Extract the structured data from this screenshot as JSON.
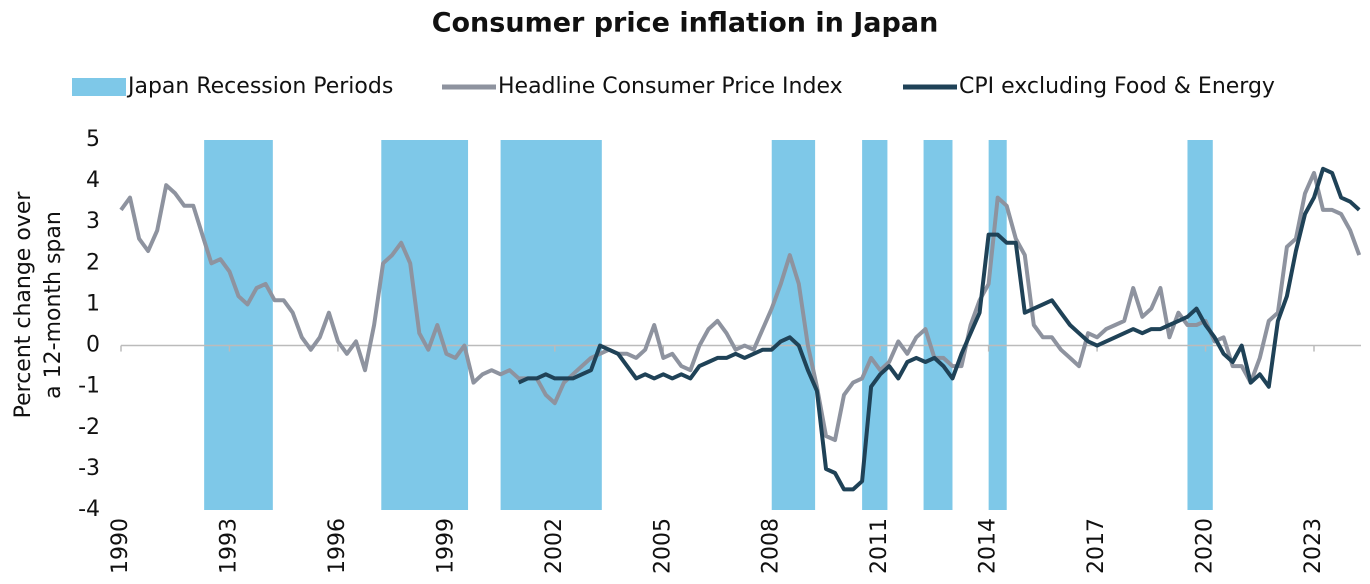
{
  "chart_data": {
    "type": "line",
    "title": "Consumer price inflation in Japan",
    "y_label": [
      "Percent change over",
      "a 12-month span"
    ],
    "x": [
      1990,
      1990.25,
      1990.5,
      1990.75,
      1991,
      1991.25,
      1991.5,
      1991.75,
      1992,
      1992.25,
      1992.5,
      1992.75,
      1993,
      1993.25,
      1993.5,
      1993.75,
      1994,
      1994.25,
      1994.5,
      1994.75,
      1995,
      1995.25,
      1995.5,
      1995.75,
      1996,
      1996.25,
      1996.5,
      1996.75,
      1997,
      1997.25,
      1997.5,
      1997.75,
      1998,
      1998.25,
      1998.5,
      1998.75,
      1999,
      1999.25,
      1999.5,
      1999.75,
      2000,
      2000.25,
      2000.5,
      2000.75,
      2001,
      2001.25,
      2001.5,
      2001.75,
      2002,
      2002.25,
      2002.5,
      2002.75,
      2003,
      2003.25,
      2003.5,
      2003.75,
      2004,
      2004.25,
      2004.5,
      2004.75,
      2005,
      2005.25,
      2005.5,
      2005.75,
      2006,
      2006.25,
      2006.5,
      2006.75,
      2007,
      2007.25,
      2007.5,
      2007.75,
      2008,
      2008.25,
      2008.5,
      2008.75,
      2009,
      2009.25,
      2009.5,
      2009.75,
      2010,
      2010.25,
      2010.5,
      2010.75,
      2011,
      2011.25,
      2011.5,
      2011.75,
      2012,
      2012.25,
      2012.5,
      2012.75,
      2013,
      2013.25,
      2013.5,
      2013.75,
      2014,
      2014.25,
      2014.5,
      2014.75,
      2015,
      2015.25,
      2015.5,
      2015.75,
      2016,
      2016.25,
      2016.5,
      2016.75,
      2017,
      2017.25,
      2017.5,
      2017.75,
      2018,
      2018.25,
      2018.5,
      2018.75,
      2019,
      2019.25,
      2019.5,
      2019.75,
      2020,
      2020.25,
      2020.5,
      2020.75,
      2021,
      2021.25,
      2021.5,
      2021.75,
      2022,
      2022.25,
      2022.5,
      2022.75,
      2023,
      2023.25,
      2023.5,
      2023.75,
      2024,
      2024.25
    ],
    "series": [
      {
        "name": "Japan Recession Periods",
        "color": "#7ec8e8",
        "periods": [
          [
            1992.3,
            1994.2
          ],
          [
            1997.2,
            1999.6
          ],
          [
            2000.5,
            2003.3
          ],
          [
            2008.0,
            2009.2
          ],
          [
            2010.5,
            2011.2
          ],
          [
            2012.2,
            2013.0
          ],
          [
            2014.0,
            2014.5
          ],
          [
            2019.5,
            2020.2
          ]
        ]
      },
      {
        "name": "Headline Consumer Price Index",
        "color": "#8e939f",
        "values": [
          3.3,
          3.6,
          2.6,
          2.3,
          2.8,
          3.9,
          3.7,
          3.4,
          3.4,
          2.7,
          2.0,
          2.1,
          1.8,
          1.2,
          1.0,
          1.4,
          1.5,
          1.1,
          1.1,
          0.8,
          0.2,
          -0.1,
          0.2,
          0.8,
          0.1,
          -0.2,
          0.1,
          -0.6,
          0.5,
          2.0,
          2.2,
          2.5,
          2.0,
          0.3,
          -0.1,
          0.5,
          -0.2,
          -0.3,
          0.0,
          -0.9,
          -0.7,
          -0.6,
          -0.7,
          -0.6,
          -0.8,
          -0.8,
          -0.8,
          -1.2,
          -1.4,
          -0.9,
          -0.7,
          -0.5,
          -0.3,
          -0.2,
          -0.1,
          -0.2,
          -0.2,
          -0.3,
          -0.1,
          0.5,
          -0.3,
          -0.2,
          -0.5,
          -0.6,
          0.0,
          0.4,
          0.6,
          0.3,
          -0.1,
          0.0,
          -0.1,
          0.4,
          0.9,
          1.5,
          2.2,
          1.5,
          0.0,
          -1.0,
          -2.2,
          -2.3,
          -1.2,
          -0.9,
          -0.8,
          -0.3,
          -0.6,
          -0.4,
          0.1,
          -0.2,
          0.2,
          0.4,
          -0.3,
          -0.3,
          -0.5,
          -0.5,
          0.5,
          1.1,
          1.5,
          3.6,
          3.4,
          2.6,
          2.2,
          0.5,
          0.2,
          0.2,
          -0.1,
          -0.3,
          -0.5,
          0.3,
          0.2,
          0.4,
          0.5,
          0.6,
          1.4,
          0.7,
          0.9,
          1.4,
          0.2,
          0.8,
          0.5,
          0.5,
          0.6,
          0.1,
          0.2,
          -0.5,
          -0.5,
          -0.9,
          -0.3,
          0.6,
          0.8,
          2.4,
          2.6,
          3.7,
          4.2,
          3.3,
          3.3,
          3.2,
          2.8,
          2.2
        ]
      },
      {
        "name": "CPI excluding Food & Energy",
        "color": "#1f4257",
        "values": [
          null,
          null,
          null,
          null,
          null,
          null,
          null,
          null,
          null,
          null,
          null,
          null,
          null,
          null,
          null,
          null,
          null,
          null,
          null,
          null,
          null,
          null,
          null,
          null,
          null,
          null,
          null,
          null,
          null,
          null,
          null,
          null,
          null,
          null,
          null,
          null,
          null,
          null,
          null,
          null,
          null,
          null,
          null,
          null,
          -0.9,
          -0.8,
          -0.8,
          -0.7,
          -0.8,
          -0.8,
          -0.8,
          -0.7,
          -0.6,
          0.0,
          -0.1,
          -0.2,
          -0.5,
          -0.8,
          -0.7,
          -0.8,
          -0.7,
          -0.8,
          -0.7,
          -0.8,
          -0.5,
          -0.4,
          -0.3,
          -0.3,
          -0.2,
          -0.3,
          -0.2,
          -0.1,
          -0.1,
          0.1,
          0.2,
          0.0,
          -0.6,
          -1.1,
          -3.0,
          -3.1,
          -3.5,
          -3.5,
          -3.3,
          -1.0,
          -0.7,
          -0.5,
          -0.8,
          -0.4,
          -0.3,
          -0.4,
          -0.3,
          -0.5,
          -0.8,
          -0.2,
          0.3,
          0.8,
          2.7,
          2.7,
          2.5,
          2.5,
          0.8,
          0.9,
          1.0,
          1.1,
          0.8,
          0.5,
          0.3,
          0.1,
          0.0,
          0.1,
          0.2,
          0.3,
          0.4,
          0.3,
          0.4,
          0.4,
          0.5,
          0.6,
          0.7,
          0.9,
          0.5,
          0.2,
          -0.2,
          -0.4,
          0.0,
          -0.9,
          -0.7,
          -1.0,
          0.6,
          1.2,
          2.3,
          3.2,
          3.6,
          4.3,
          4.2,
          3.6,
          3.5,
          3.3
        ]
      }
    ],
    "xlim": [
      1990,
      2024.3
    ],
    "xticks": [
      1990,
      1993,
      1996,
      1999,
      2002,
      2005,
      2008,
      2011,
      2014,
      2017,
      2020,
      2023
    ],
    "ylim": [
      -4,
      5
    ],
    "yticks": [
      -4,
      -3,
      -2,
      -1,
      0,
      1,
      2,
      3,
      4,
      5
    ]
  }
}
